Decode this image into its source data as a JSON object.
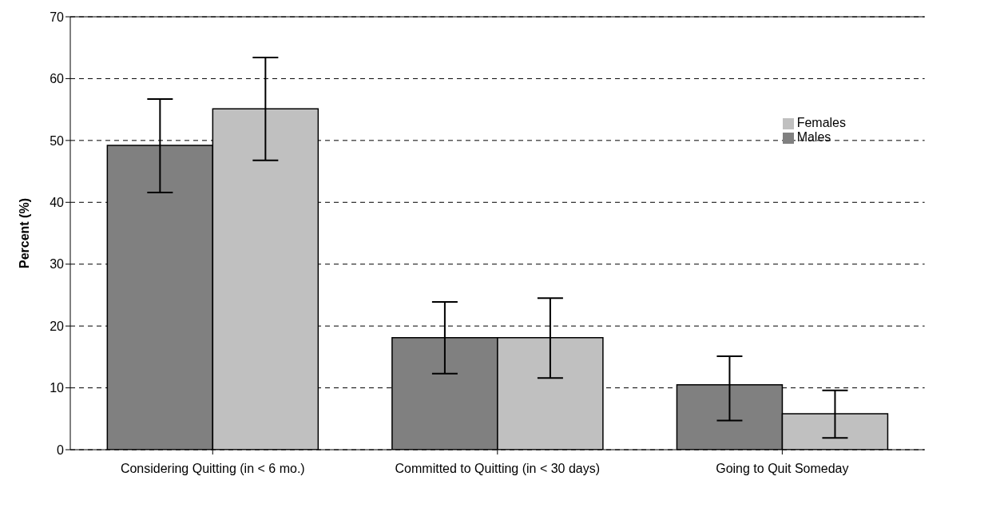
{
  "chart_data": {
    "type": "bar",
    "ylabel": "Percent (%)",
    "categories": [
      "Considering Quitting (in < 6 mo.)",
      "Committed to Quitting (in < 30 days)",
      "Going to Quit Someday"
    ],
    "series": [
      {
        "name": "Males",
        "color": "#808080",
        "values": [
          49.2,
          18.1,
          10.5
        ],
        "errors": [
          [
            41.6,
            56.7
          ],
          [
            12.3,
            23.9
          ],
          [
            4.7,
            15.1
          ]
        ]
      },
      {
        "name": "Females",
        "color": "#c0c0c0",
        "values": [
          55.1,
          18.1,
          5.8
        ],
        "errors": [
          [
            46.8,
            63.4
          ],
          [
            11.6,
            24.5
          ],
          [
            1.9,
            9.6
          ]
        ]
      }
    ],
    "ylim": [
      0,
      70
    ],
    "yticks": [
      0,
      10,
      20,
      30,
      40,
      50,
      60,
      70
    ],
    "grid": "y",
    "legend": "top right"
  }
}
